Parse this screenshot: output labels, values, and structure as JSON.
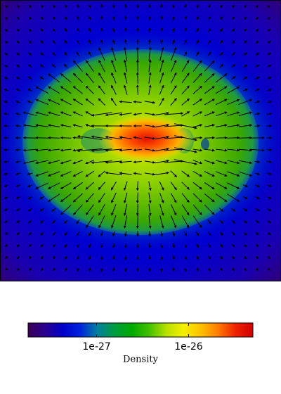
{
  "chart_data": {
    "type": "image",
    "colorbar": {
      "label": "Density",
      "scale": "log",
      "lim": [
        1.8e-28,
        5e-26
      ],
      "ticks": [
        {
          "value": 1e-27,
          "label": "1e-27"
        },
        {
          "value": 1e-26,
          "label": "1e-26"
        }
      ],
      "colors": [
        "#3a0055",
        "#2a0090",
        "#0000c8",
        "#0022dd",
        "#007f9f",
        "#009c40",
        "#00aa00",
        "#44c000",
        "#b8e000",
        "#f5f000",
        "#ffc000",
        "#ff7a00",
        "#ee2200",
        "#d00000"
      ]
    }
  }
}
